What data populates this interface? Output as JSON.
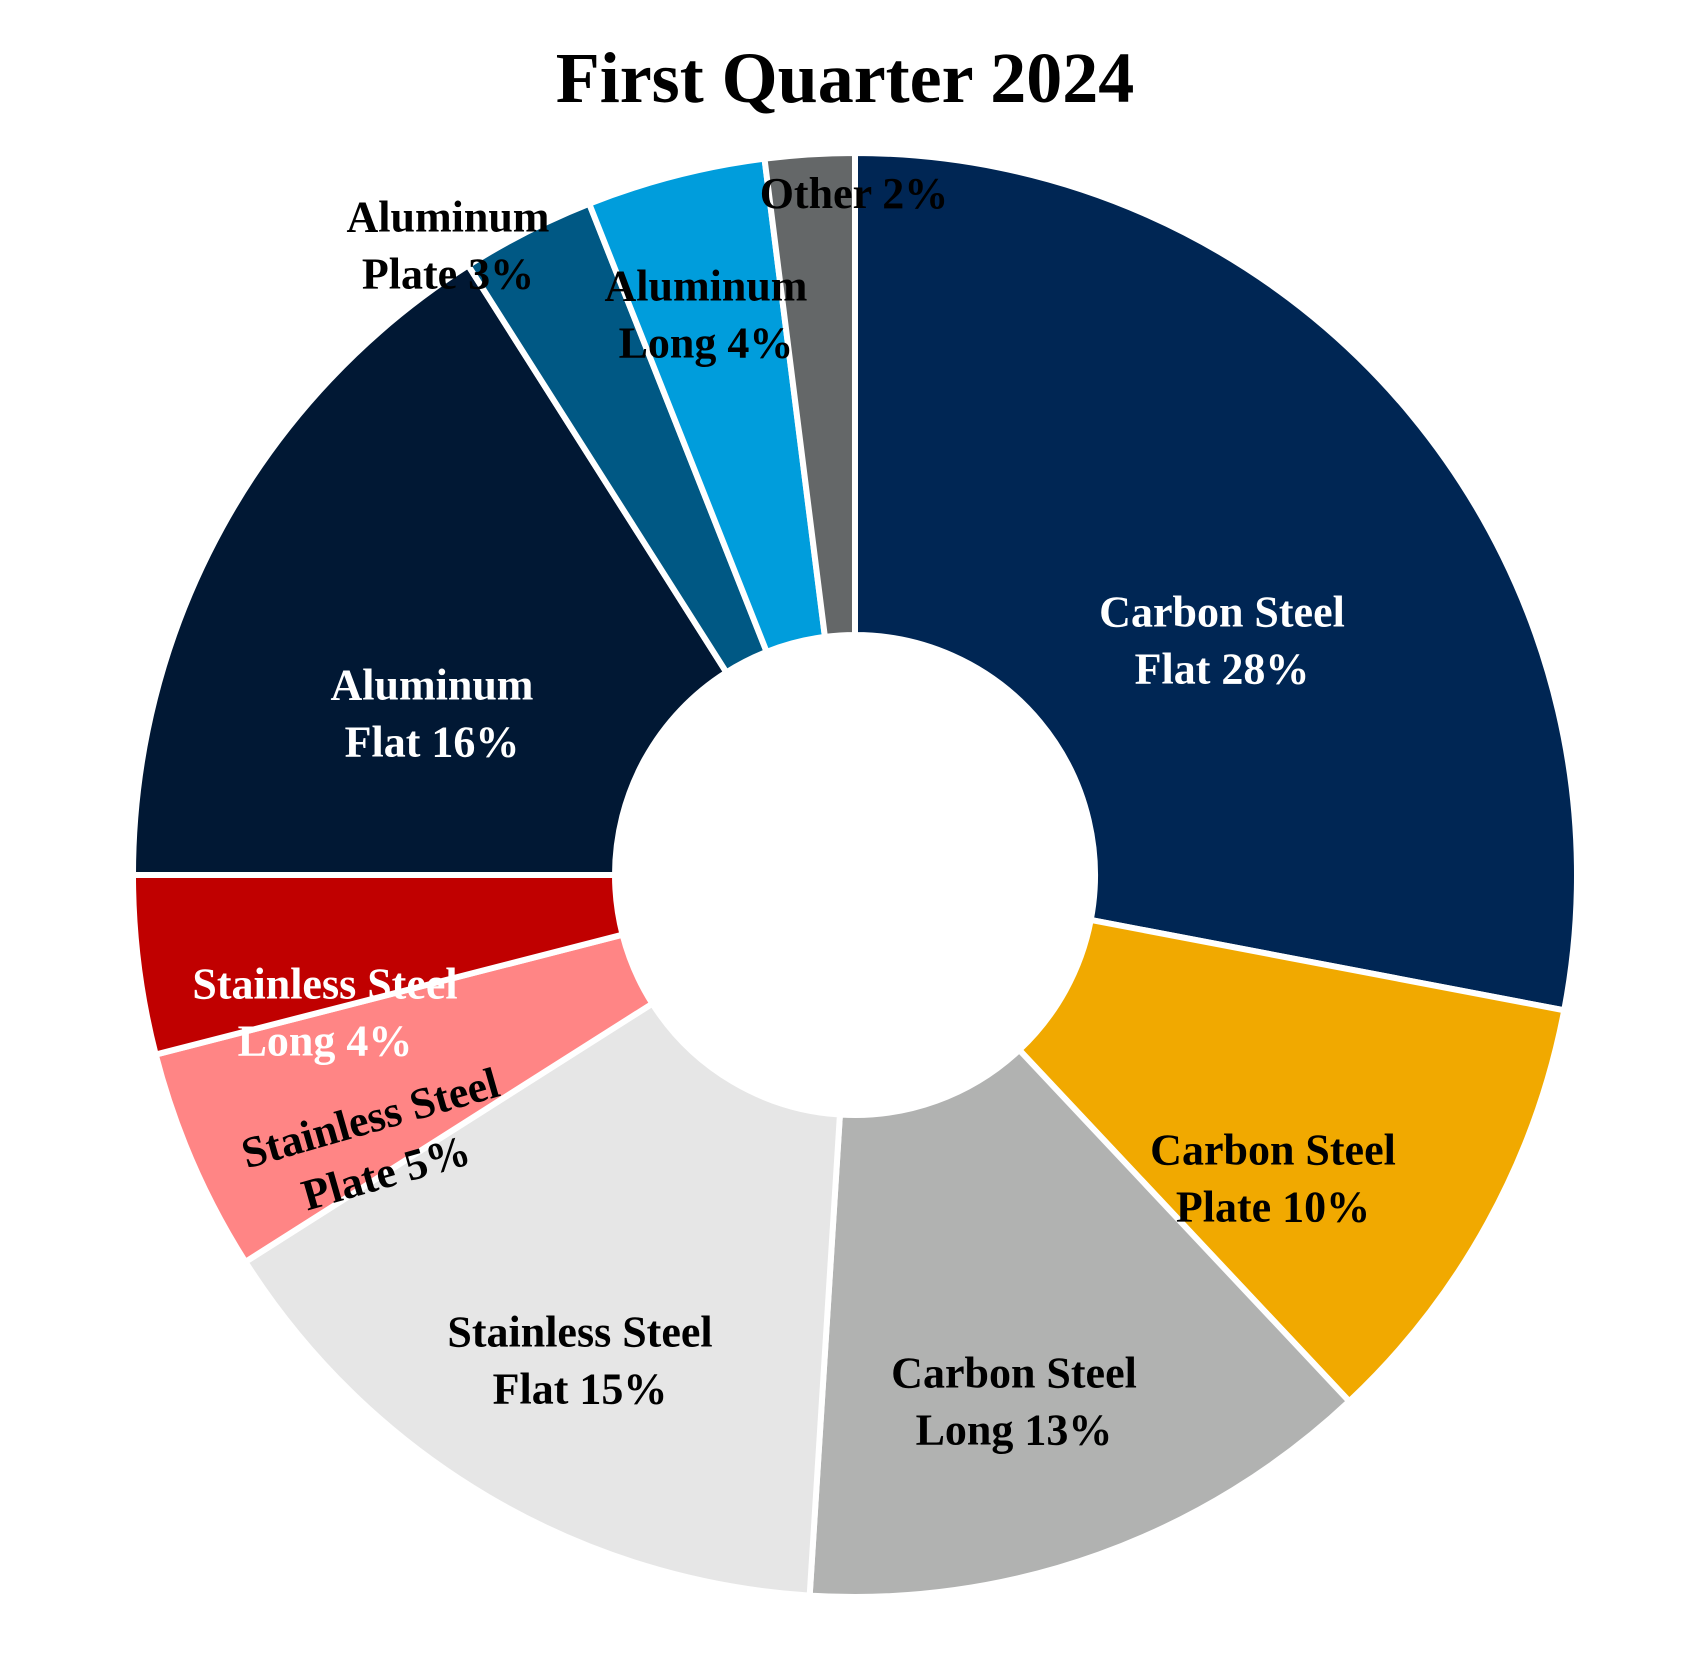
{
  "chart_data": {
    "type": "pie",
    "variant": "donut",
    "title": "First Quarter 2024",
    "legend": "none",
    "slices": [
      {
        "name": "Carbon Steel Flat",
        "value": 28,
        "label_lines": [
          "Carbon Steel",
          "Flat 28%"
        ],
        "color": "#002654",
        "text_color": "#ffffff"
      },
      {
        "name": "Carbon Steel Plate",
        "value": 10,
        "label_lines": [
          "Carbon Steel",
          "Plate 10%"
        ],
        "color": "#f1a900",
        "text_color": "#000000"
      },
      {
        "name": "Carbon Steel Long",
        "value": 13,
        "label_lines": [
          "Carbon Steel",
          "Long 13%"
        ],
        "color": "#b1b2b1",
        "text_color": "#000000"
      },
      {
        "name": "Stainless Steel Flat",
        "value": 15,
        "label_lines": [
          "Stainless Steel",
          "Flat 15%"
        ],
        "color": "#e6e6e6",
        "text_color": "#000000"
      },
      {
        "name": "Stainless Steel Plate",
        "value": 5,
        "label_lines": [
          "Stainless Steel",
          "Plate 5%"
        ],
        "color": "#ff8585",
        "text_color": "#000000"
      },
      {
        "name": "Stainless Steel Long",
        "value": 4,
        "label_lines": [
          "Stainless Steel",
          "Long  4%"
        ],
        "color": "#c00000",
        "text_color": "#ffffff"
      },
      {
        "name": "Aluminum Flat",
        "value": 16,
        "label_lines": [
          "Aluminum",
          "Flat 16%"
        ],
        "color": "#011834",
        "text_color": "#ffffff"
      },
      {
        "name": "Aluminum Plate",
        "value": 3,
        "label_lines": [
          "Aluminum",
          "Plate 3%"
        ],
        "color": "#005884",
        "text_color": "#000000"
      },
      {
        "name": "Aluminum Long",
        "value": 4,
        "label_lines": [
          "Aluminum",
          "Long 4%"
        ],
        "color": "#009ddc",
        "text_color": "#000000"
      },
      {
        "name": "Other",
        "value": 2,
        "label_lines": [
          "Other 2%"
        ],
        "color": "#646768",
        "text_color": "#000000"
      }
    ]
  }
}
